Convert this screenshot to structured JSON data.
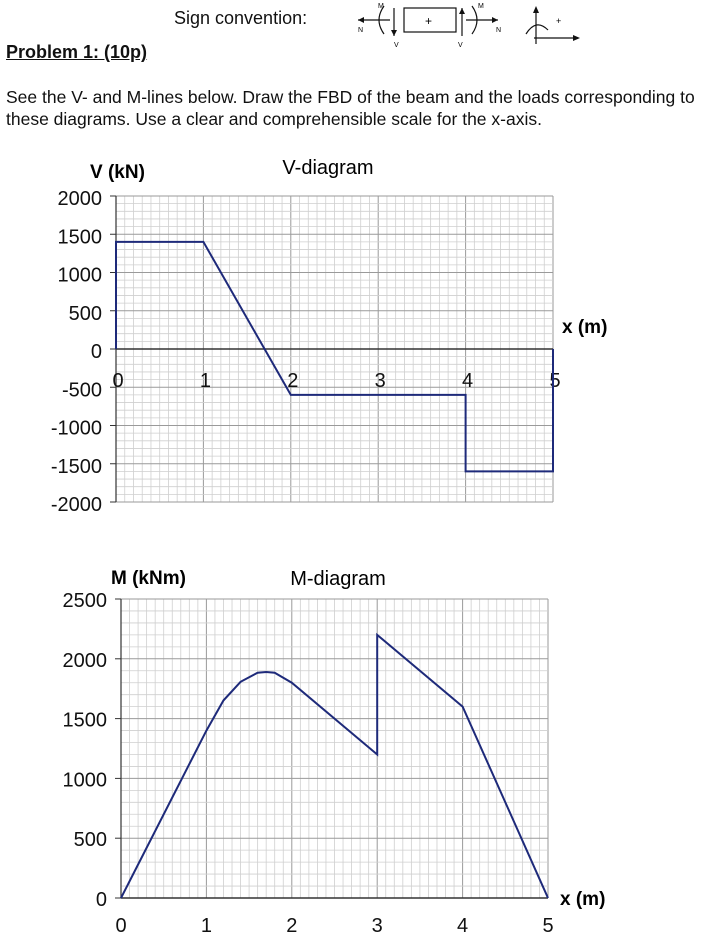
{
  "header": {
    "sign_convention_label": "Sign convention:",
    "sign_symbols": {
      "M": "M",
      "N": "N",
      "V": "V",
      "plus": "+"
    },
    "problem_title": "Problem 1: (10p)",
    "instructions": "See the V- and M-lines below. Draw the FBD of the beam and the loads corresponding to these diagrams. Use a clear and comprehensible scale for the x-axis."
  },
  "chart_data": [
    {
      "type": "line",
      "title": "V-diagram",
      "ylabel": "V (kN)",
      "xlabel": "x (m)",
      "xlim": [
        0,
        5
      ],
      "ylim": [
        -2000,
        2000
      ],
      "xticks": [
        "0",
        "1",
        "2",
        "3",
        "4",
        "5"
      ],
      "yticks": [
        "2000",
        "1500",
        "1000",
        "500",
        "0",
        "-500",
        "-1000",
        "-1500",
        "-2000"
      ],
      "grid": true,
      "series": [
        {
          "x": [
            0,
            0,
            1,
            2,
            4,
            4,
            5,
            5
          ],
          "y": [
            0,
            1400,
            1400,
            -600,
            -600,
            -1600,
            -1600,
            0
          ]
        }
      ]
    },
    {
      "type": "line",
      "title": "M-diagram",
      "ylabel": "M (kNm)",
      "xlabel": "x (m)",
      "xlim": [
        0,
        5
      ],
      "ylim": [
        0,
        2500
      ],
      "xticks": [
        "0",
        "1",
        "2",
        "3",
        "4",
        "5"
      ],
      "yticks": [
        "2500",
        "2000",
        "1500",
        "1000",
        "500",
        "0"
      ],
      "grid": true,
      "series": [
        {
          "x": [
            0,
            1,
            1.2,
            1.4,
            1.6,
            1.7,
            1.8,
            2,
            3,
            3,
            4,
            5
          ],
          "y": [
            0,
            1400,
            1652,
            1808,
            1884,
            1890,
            1884,
            1800,
            1200,
            2200,
            1600,
            0
          ]
        }
      ]
    }
  ]
}
